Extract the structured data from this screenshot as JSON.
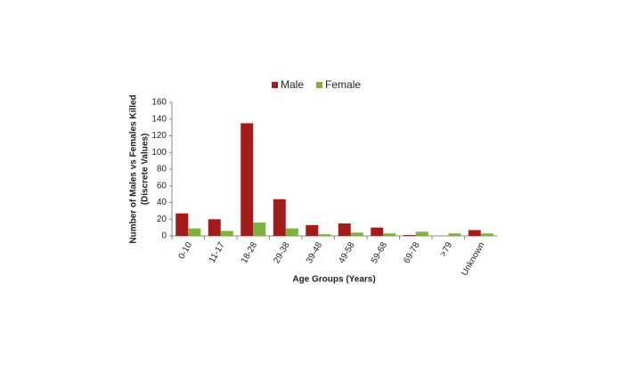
{
  "chart_data": {
    "type": "bar",
    "ylabel": [
      "Number of Males vs Females Killed",
      "(Discrete Values)"
    ],
    "xlabel": "Age Groups (Years)",
    "categories": [
      "0-10",
      "11-17",
      "18-28",
      "29-38",
      "39-48",
      "49-58",
      "59-68",
      "69-78",
      ">79",
      "Unknown"
    ],
    "series": [
      {
        "name": "Male",
        "color": "#a31b1b",
        "values": [
          27,
          20,
          135,
          44,
          13,
          15,
          10,
          1,
          0,
          7
        ]
      },
      {
        "name": "Female",
        "color": "#7fb13f",
        "values": [
          9,
          6,
          16,
          9,
          2,
          4,
          3,
          5,
          3,
          3
        ]
      }
    ],
    "ylim": [
      0,
      160
    ],
    "yticks": [
      0,
      20,
      40,
      60,
      80,
      100,
      120,
      140,
      160
    ],
    "legend": "top"
  }
}
